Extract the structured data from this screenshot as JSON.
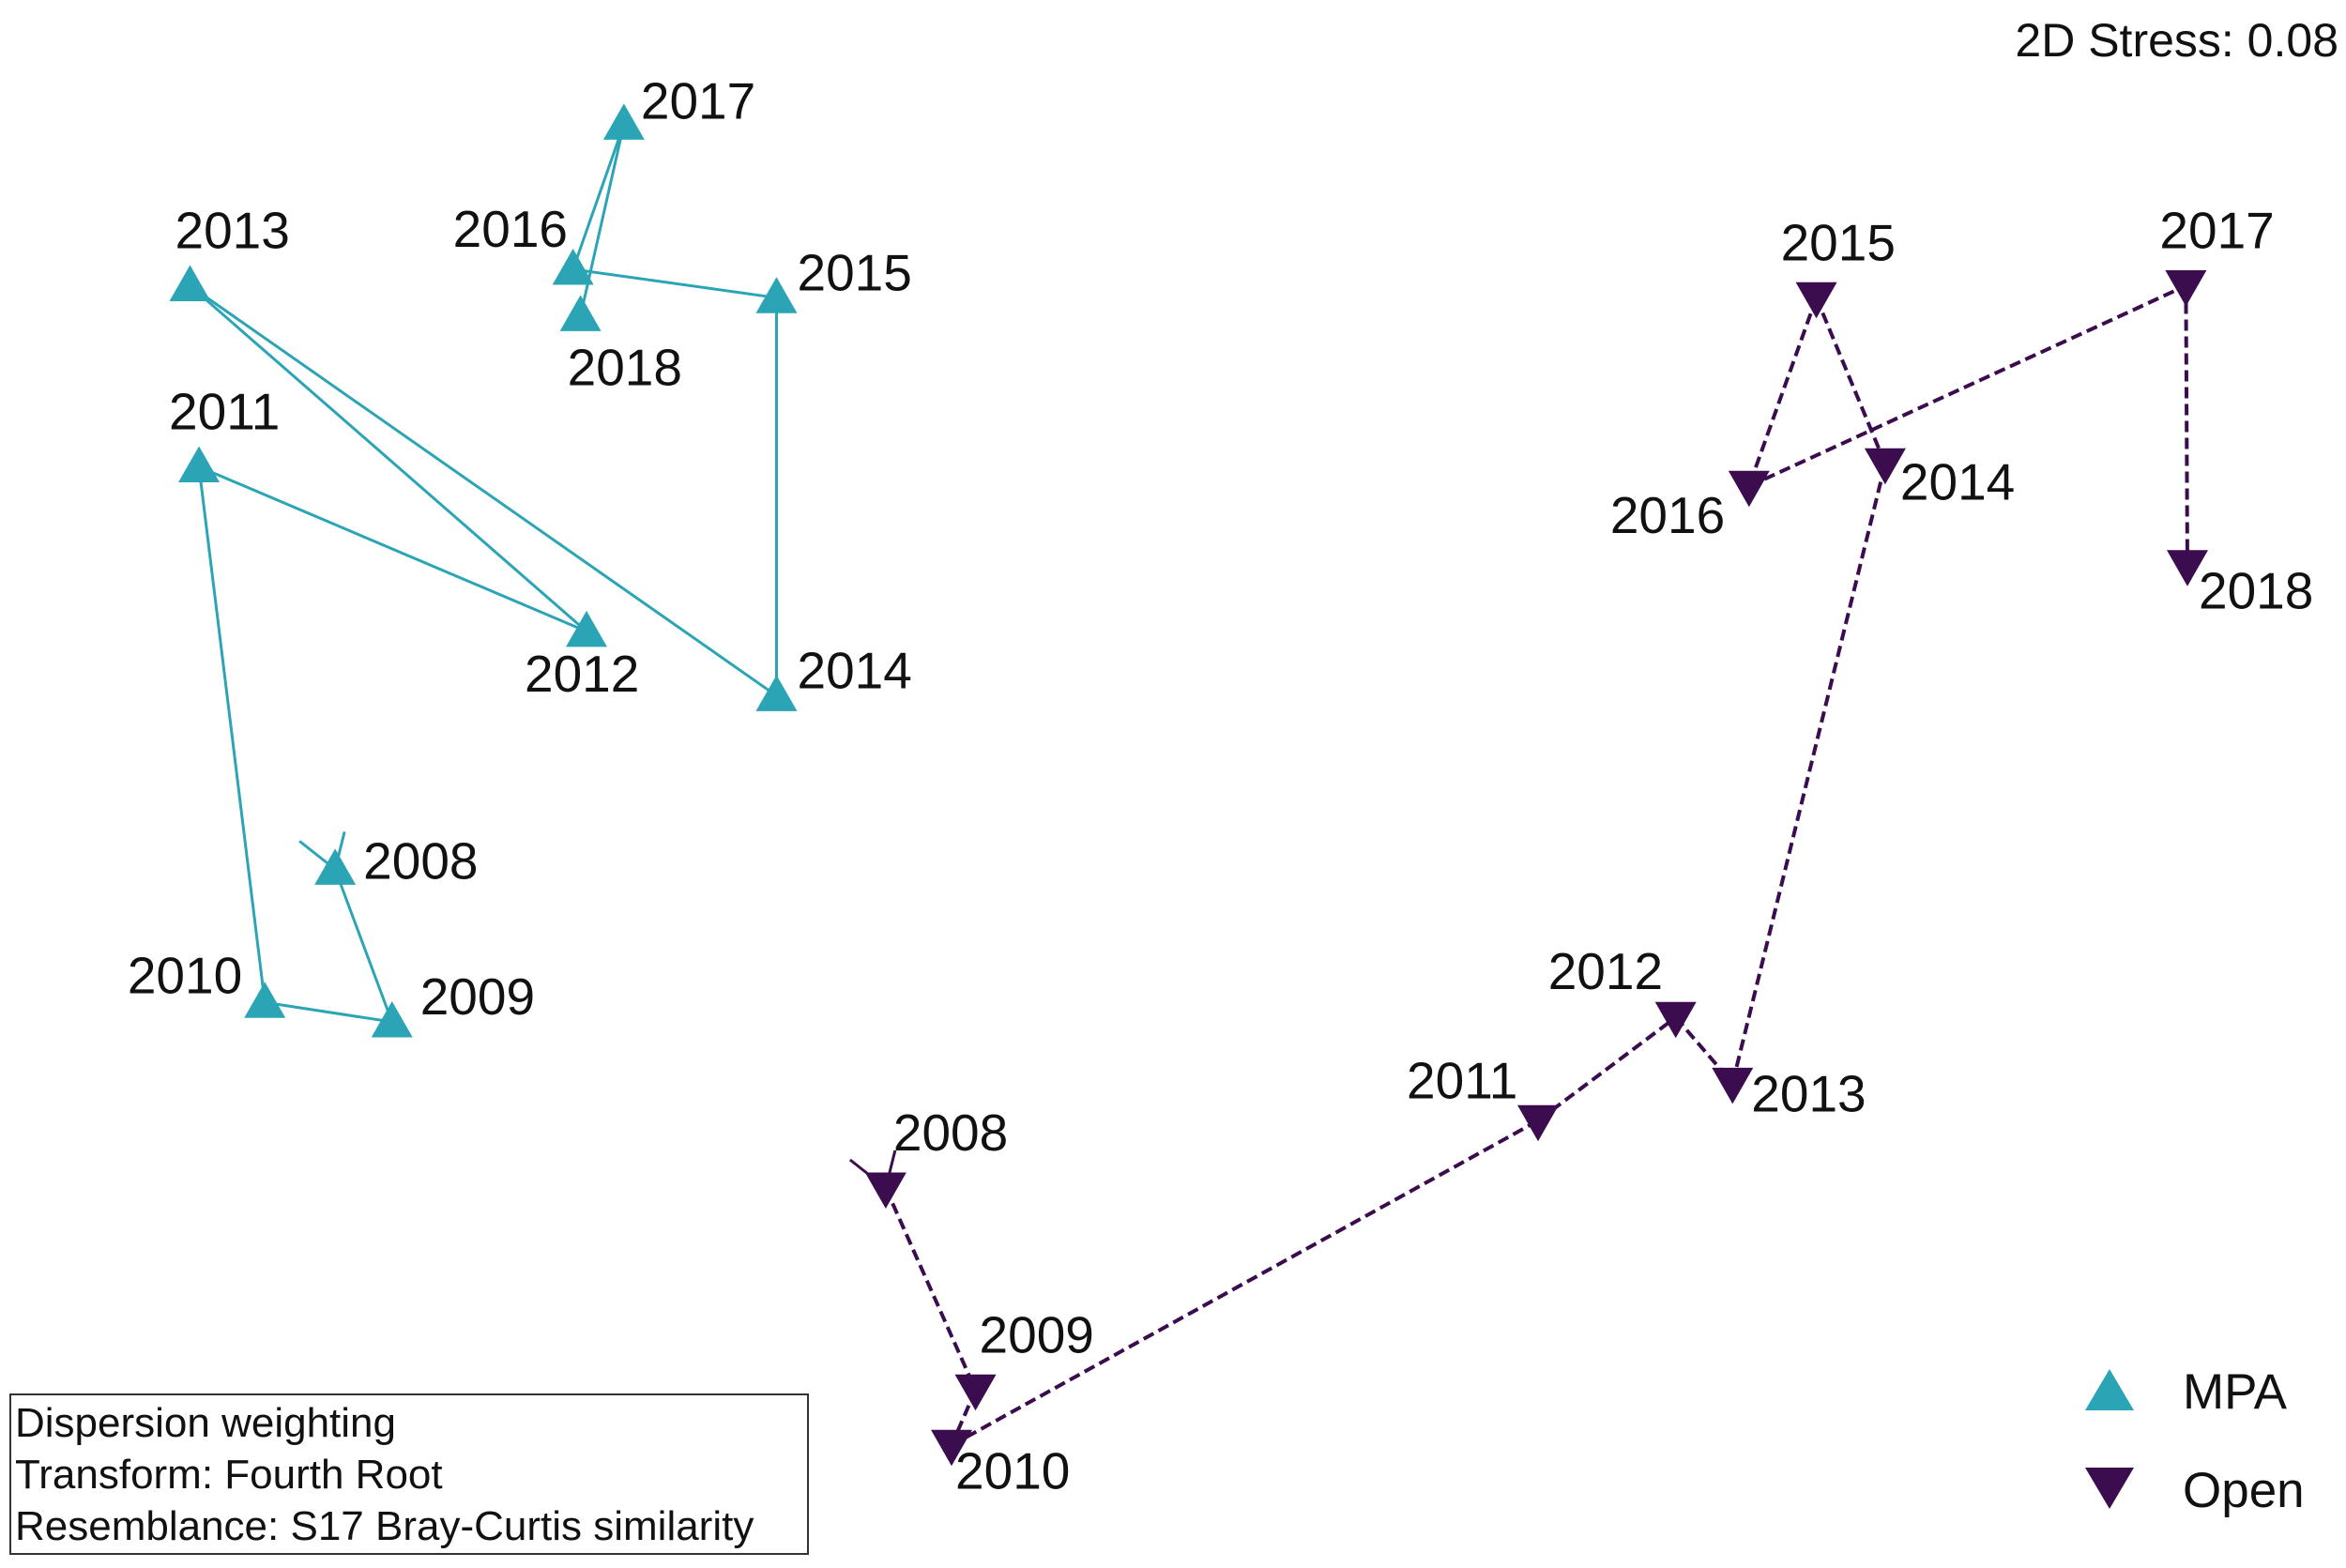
{
  "chart_data": {
    "type": "scatter",
    "stress_text": "2D Stress: 0.08",
    "info_lines": [
      "Dispersion weighting",
      "Transform: Fourth Root",
      "Resemblance: S17 Bray-Curtis similarity"
    ],
    "x_range": [
      0,
      1568
    ],
    "y_range": [
      0,
      1048
    ],
    "series": [
      {
        "name": "MPA",
        "marker": "triangle-up",
        "color": "#2ba5b5",
        "line_style": "solid",
        "points": [
          {
            "label": "2008",
            "x": 224,
            "y": 467
          },
          {
            "label": "2009",
            "x": 262,
            "y": 365
          },
          {
            "label": "2010",
            "x": 177,
            "y": 378
          },
          {
            "label": "2011",
            "x": 133,
            "y": 736
          },
          {
            "label": "2012",
            "x": 392,
            "y": 626
          },
          {
            "label": "2013",
            "x": 127,
            "y": 857
          },
          {
            "label": "2014",
            "x": 519,
            "y": 583
          },
          {
            "label": "2015",
            "x": 519,
            "y": 849
          },
          {
            "label": "2016",
            "x": 383,
            "y": 868
          },
          {
            "label": "2017",
            "x": 417,
            "y": 965
          },
          {
            "label": "2018",
            "x": 388,
            "y": 837
          }
        ]
      },
      {
        "name": "Open",
        "marker": "triangle-down",
        "color": "#3b0d4f",
        "line_style": "dashed",
        "points": [
          {
            "label": "2008",
            "x": 592,
            "y": 254
          },
          {
            "label": "2009",
            "x": 652,
            "y": 119
          },
          {
            "label": "2010",
            "x": 636,
            "y": 82
          },
          {
            "label": "2011",
            "x": 1028,
            "y": 299
          },
          {
            "label": "2012",
            "x": 1120,
            "y": 368
          },
          {
            "label": "2013",
            "x": 1158,
            "y": 324
          },
          {
            "label": "2014",
            "x": 1260,
            "y": 738
          },
          {
            "label": "2015",
            "x": 1214,
            "y": 849
          },
          {
            "label": "2016",
            "x": 1169,
            "y": 723
          },
          {
            "label": "2017",
            "x": 1461,
            "y": 857
          },
          {
            "label": "2018",
            "x": 1462,
            "y": 670
          }
        ]
      }
    ],
    "legend": {
      "position": "bottom-right",
      "entries": [
        "MPA",
        "Open"
      ]
    }
  }
}
